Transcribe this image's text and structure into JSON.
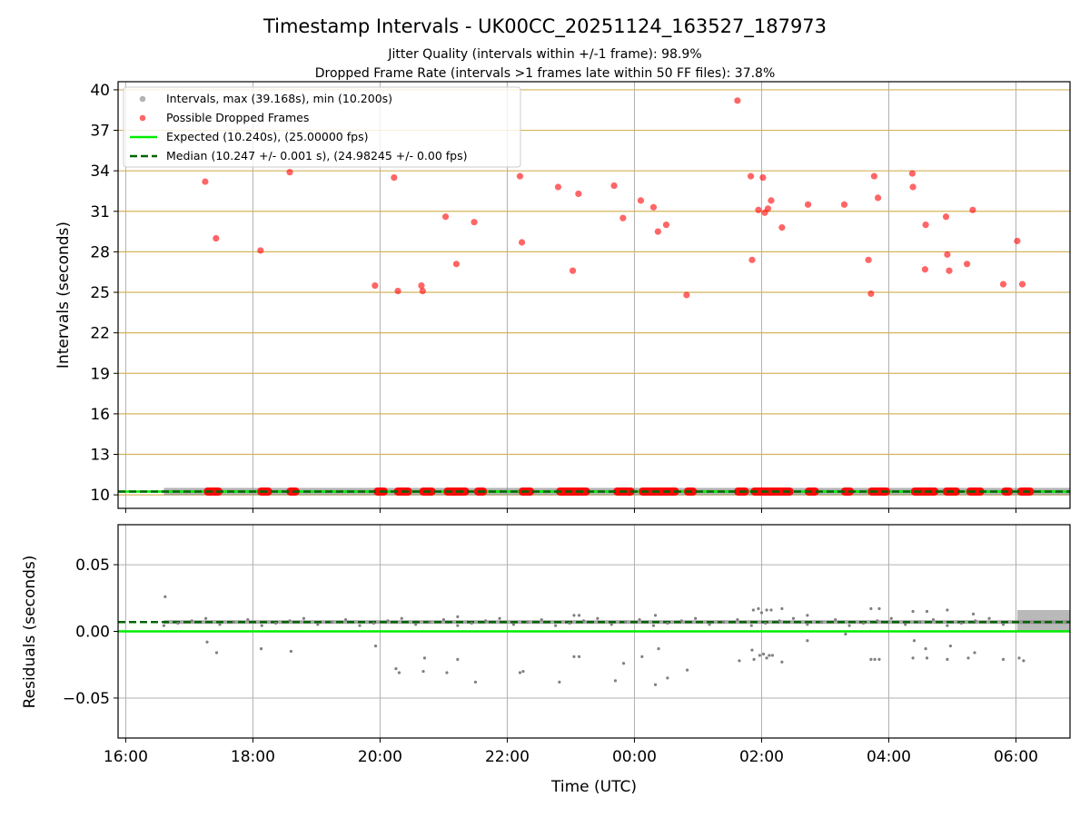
{
  "figure": {
    "title": "Timestamp Intervals - UK00CC_20251124_163527_187973",
    "subtitle_1": "Jitter Quality (intervals within +/-1 frame): 98.9%",
    "subtitle_2": "Dropped Frame Rate (intervals >1 frames late within 50 FF files): 37.8%"
  },
  "colors": {
    "intervals": "#808080",
    "dropped": "#ff0000",
    "expected": "#00ee00",
    "median": "#006400",
    "threshold_grid": "#d4b45c",
    "grid": "#b0b0b0"
  },
  "chart_data": [
    {
      "type": "scatter",
      "panel": "intervals",
      "ylabel": "Intervals (seconds)",
      "ylim": [
        9,
        40.6
      ],
      "yticks": [
        "10",
        "13",
        "16",
        "19",
        "22",
        "25",
        "28",
        "31",
        "34",
        "37",
        "40"
      ],
      "xlim_hours": [
        15.88,
        30.85
      ],
      "grid": true,
      "legend_placement": "upper-left",
      "legend": [
        {
          "key": "intervals",
          "label": "Intervals, max (39.168s), min (10.200s)"
        },
        {
          "key": "dropped",
          "label": "Possible Dropped Frames"
        },
        {
          "key": "expected",
          "label": "Expected (10.240s), (25.00000 fps)"
        },
        {
          "key": "median",
          "label": "Median (10.247 +/- 0.001 s), (24.98245 +/- 0.00 fps)"
        }
      ],
      "expected_interval": 10.24,
      "median_interval": 10.247,
      "interval_range_hours": [
        16.6,
        30.85
      ],
      "dropped_frames": [
        [
          17.25,
          33.2
        ],
        [
          17.42,
          29.0
        ],
        [
          18.12,
          28.1
        ],
        [
          18.58,
          33.9
        ],
        [
          19.92,
          25.5
        ],
        [
          20.22,
          33.5
        ],
        [
          20.28,
          25.1
        ],
        [
          20.65,
          25.5
        ],
        [
          20.67,
          25.1
        ],
        [
          21.03,
          30.6
        ],
        [
          21.2,
          27.1
        ],
        [
          21.48,
          30.2
        ],
        [
          22.2,
          33.6
        ],
        [
          22.23,
          28.7
        ],
        [
          22.8,
          32.8
        ],
        [
          23.03,
          26.6
        ],
        [
          23.12,
          32.3
        ],
        [
          23.68,
          32.9
        ],
        [
          23.82,
          30.5
        ],
        [
          24.1,
          31.8
        ],
        [
          24.3,
          31.3
        ],
        [
          24.37,
          29.5
        ],
        [
          24.5,
          30.0
        ],
        [
          24.82,
          24.8
        ],
        [
          25.62,
          39.2
        ],
        [
          25.83,
          33.6
        ],
        [
          25.85,
          27.4
        ],
        [
          25.95,
          31.1
        ],
        [
          26.02,
          33.5
        ],
        [
          26.05,
          30.9
        ],
        [
          26.1,
          31.2
        ],
        [
          26.15,
          31.8
        ],
        [
          26.32,
          29.8
        ],
        [
          26.73,
          31.5
        ],
        [
          27.3,
          31.5
        ],
        [
          27.68,
          27.4
        ],
        [
          27.72,
          24.9
        ],
        [
          27.77,
          33.6
        ],
        [
          27.83,
          32.0
        ],
        [
          28.37,
          33.8
        ],
        [
          28.38,
          32.8
        ],
        [
          28.57,
          26.7
        ],
        [
          28.58,
          30.0
        ],
        [
          28.9,
          30.6
        ],
        [
          28.92,
          27.8
        ],
        [
          28.95,
          26.6
        ],
        [
          29.23,
          27.1
        ],
        [
          29.32,
          31.1
        ],
        [
          29.8,
          25.6
        ],
        [
          30.02,
          28.8
        ],
        [
          30.1,
          25.6
        ]
      ],
      "dropped_segments_at_median": [
        [
          17.23,
          17.52
        ],
        [
          18.07,
          18.3
        ],
        [
          18.53,
          18.73
        ],
        [
          19.9,
          20.12
        ],
        [
          20.22,
          20.5
        ],
        [
          20.62,
          20.87
        ],
        [
          21.0,
          21.4
        ],
        [
          21.48,
          21.68
        ],
        [
          22.18,
          22.42
        ],
        [
          22.77,
          23.3
        ],
        [
          23.67,
          24.0
        ],
        [
          24.07,
          24.7
        ],
        [
          24.78,
          24.98
        ],
        [
          25.57,
          25.8
        ],
        [
          25.83,
          26.5
        ],
        [
          26.68,
          26.9
        ],
        [
          27.25,
          27.45
        ],
        [
          27.67,
          28.02
        ],
        [
          28.35,
          28.78
        ],
        [
          28.85,
          29.12
        ],
        [
          29.22,
          29.5
        ],
        [
          29.77,
          29.95
        ],
        [
          30.02,
          30.28
        ]
      ]
    },
    {
      "type": "scatter",
      "panel": "residuals",
      "xlabel": "Time (UTC)",
      "ylabel": "Residuals (seconds)",
      "ylim": [
        -0.08,
        0.08
      ],
      "yticks": [
        "0.05",
        "0.00",
        "−0.05"
      ],
      "xticks": [
        "16:00",
        "18:00",
        "20:00",
        "22:00",
        "00:00",
        "02:00",
        "04:00",
        "06:00"
      ],
      "xlim_hours": [
        15.88,
        30.85
      ],
      "grid": true,
      "expected_residual": 0.0,
      "median_residual": 0.007,
      "outliers": [
        [
          16.62,
          0.026
        ],
        [
          17.28,
          -0.008
        ],
        [
          17.43,
          -0.016
        ],
        [
          18.13,
          -0.013
        ],
        [
          18.6,
          -0.015
        ],
        [
          19.93,
          -0.011
        ],
        [
          20.25,
          -0.028
        ],
        [
          20.3,
          -0.031
        ],
        [
          20.68,
          -0.03
        ],
        [
          20.7,
          -0.02
        ],
        [
          21.05,
          -0.031
        ],
        [
          21.22,
          -0.021
        ],
        [
          21.5,
          -0.038
        ],
        [
          22.2,
          -0.031
        ],
        [
          22.25,
          -0.03
        ],
        [
          22.82,
          -0.038
        ],
        [
          23.05,
          -0.019
        ],
        [
          23.13,
          -0.019
        ],
        [
          23.7,
          -0.037
        ],
        [
          23.83,
          -0.024
        ],
        [
          24.12,
          -0.019
        ],
        [
          24.33,
          -0.04
        ],
        [
          24.38,
          -0.013
        ],
        [
          24.52,
          -0.035
        ],
        [
          24.83,
          -0.029
        ],
        [
          25.65,
          -0.022
        ],
        [
          25.85,
          -0.014
        ],
        [
          25.88,
          -0.021
        ],
        [
          25.97,
          -0.018
        ],
        [
          26.03,
          -0.017
        ],
        [
          26.08,
          -0.02
        ],
        [
          26.12,
          -0.018
        ],
        [
          26.17,
          -0.018
        ],
        [
          26.32,
          -0.023
        ],
        [
          26.72,
          -0.007
        ],
        [
          27.32,
          -0.002
        ],
        [
          27.72,
          -0.021
        ],
        [
          27.78,
          -0.021
        ],
        [
          27.85,
          -0.021
        ],
        [
          28.38,
          -0.02
        ],
        [
          28.4,
          -0.007
        ],
        [
          28.58,
          -0.013
        ],
        [
          28.6,
          -0.02
        ],
        [
          28.92,
          -0.021
        ],
        [
          28.97,
          -0.011
        ],
        [
          29.25,
          -0.02
        ],
        [
          29.35,
          -0.016
        ],
        [
          29.8,
          -0.021
        ],
        [
          30.05,
          -0.02
        ],
        [
          30.12,
          -0.022
        ],
        [
          25.87,
          0.016
        ],
        [
          25.95,
          0.017
        ],
        [
          26.0,
          0.014
        ],
        [
          26.08,
          0.016
        ],
        [
          26.15,
          0.016
        ],
        [
          26.32,
          0.017
        ],
        [
          26.72,
          0.012
        ],
        [
          27.72,
          0.017
        ],
        [
          27.85,
          0.017
        ],
        [
          28.38,
          0.015
        ],
        [
          28.6,
          0.015
        ],
        [
          28.92,
          0.016
        ],
        [
          29.33,
          0.013
        ],
        [
          23.05,
          0.012
        ],
        [
          23.13,
          0.012
        ],
        [
          21.22,
          0.011
        ],
        [
          24.33,
          0.012
        ]
      ]
    }
  ]
}
